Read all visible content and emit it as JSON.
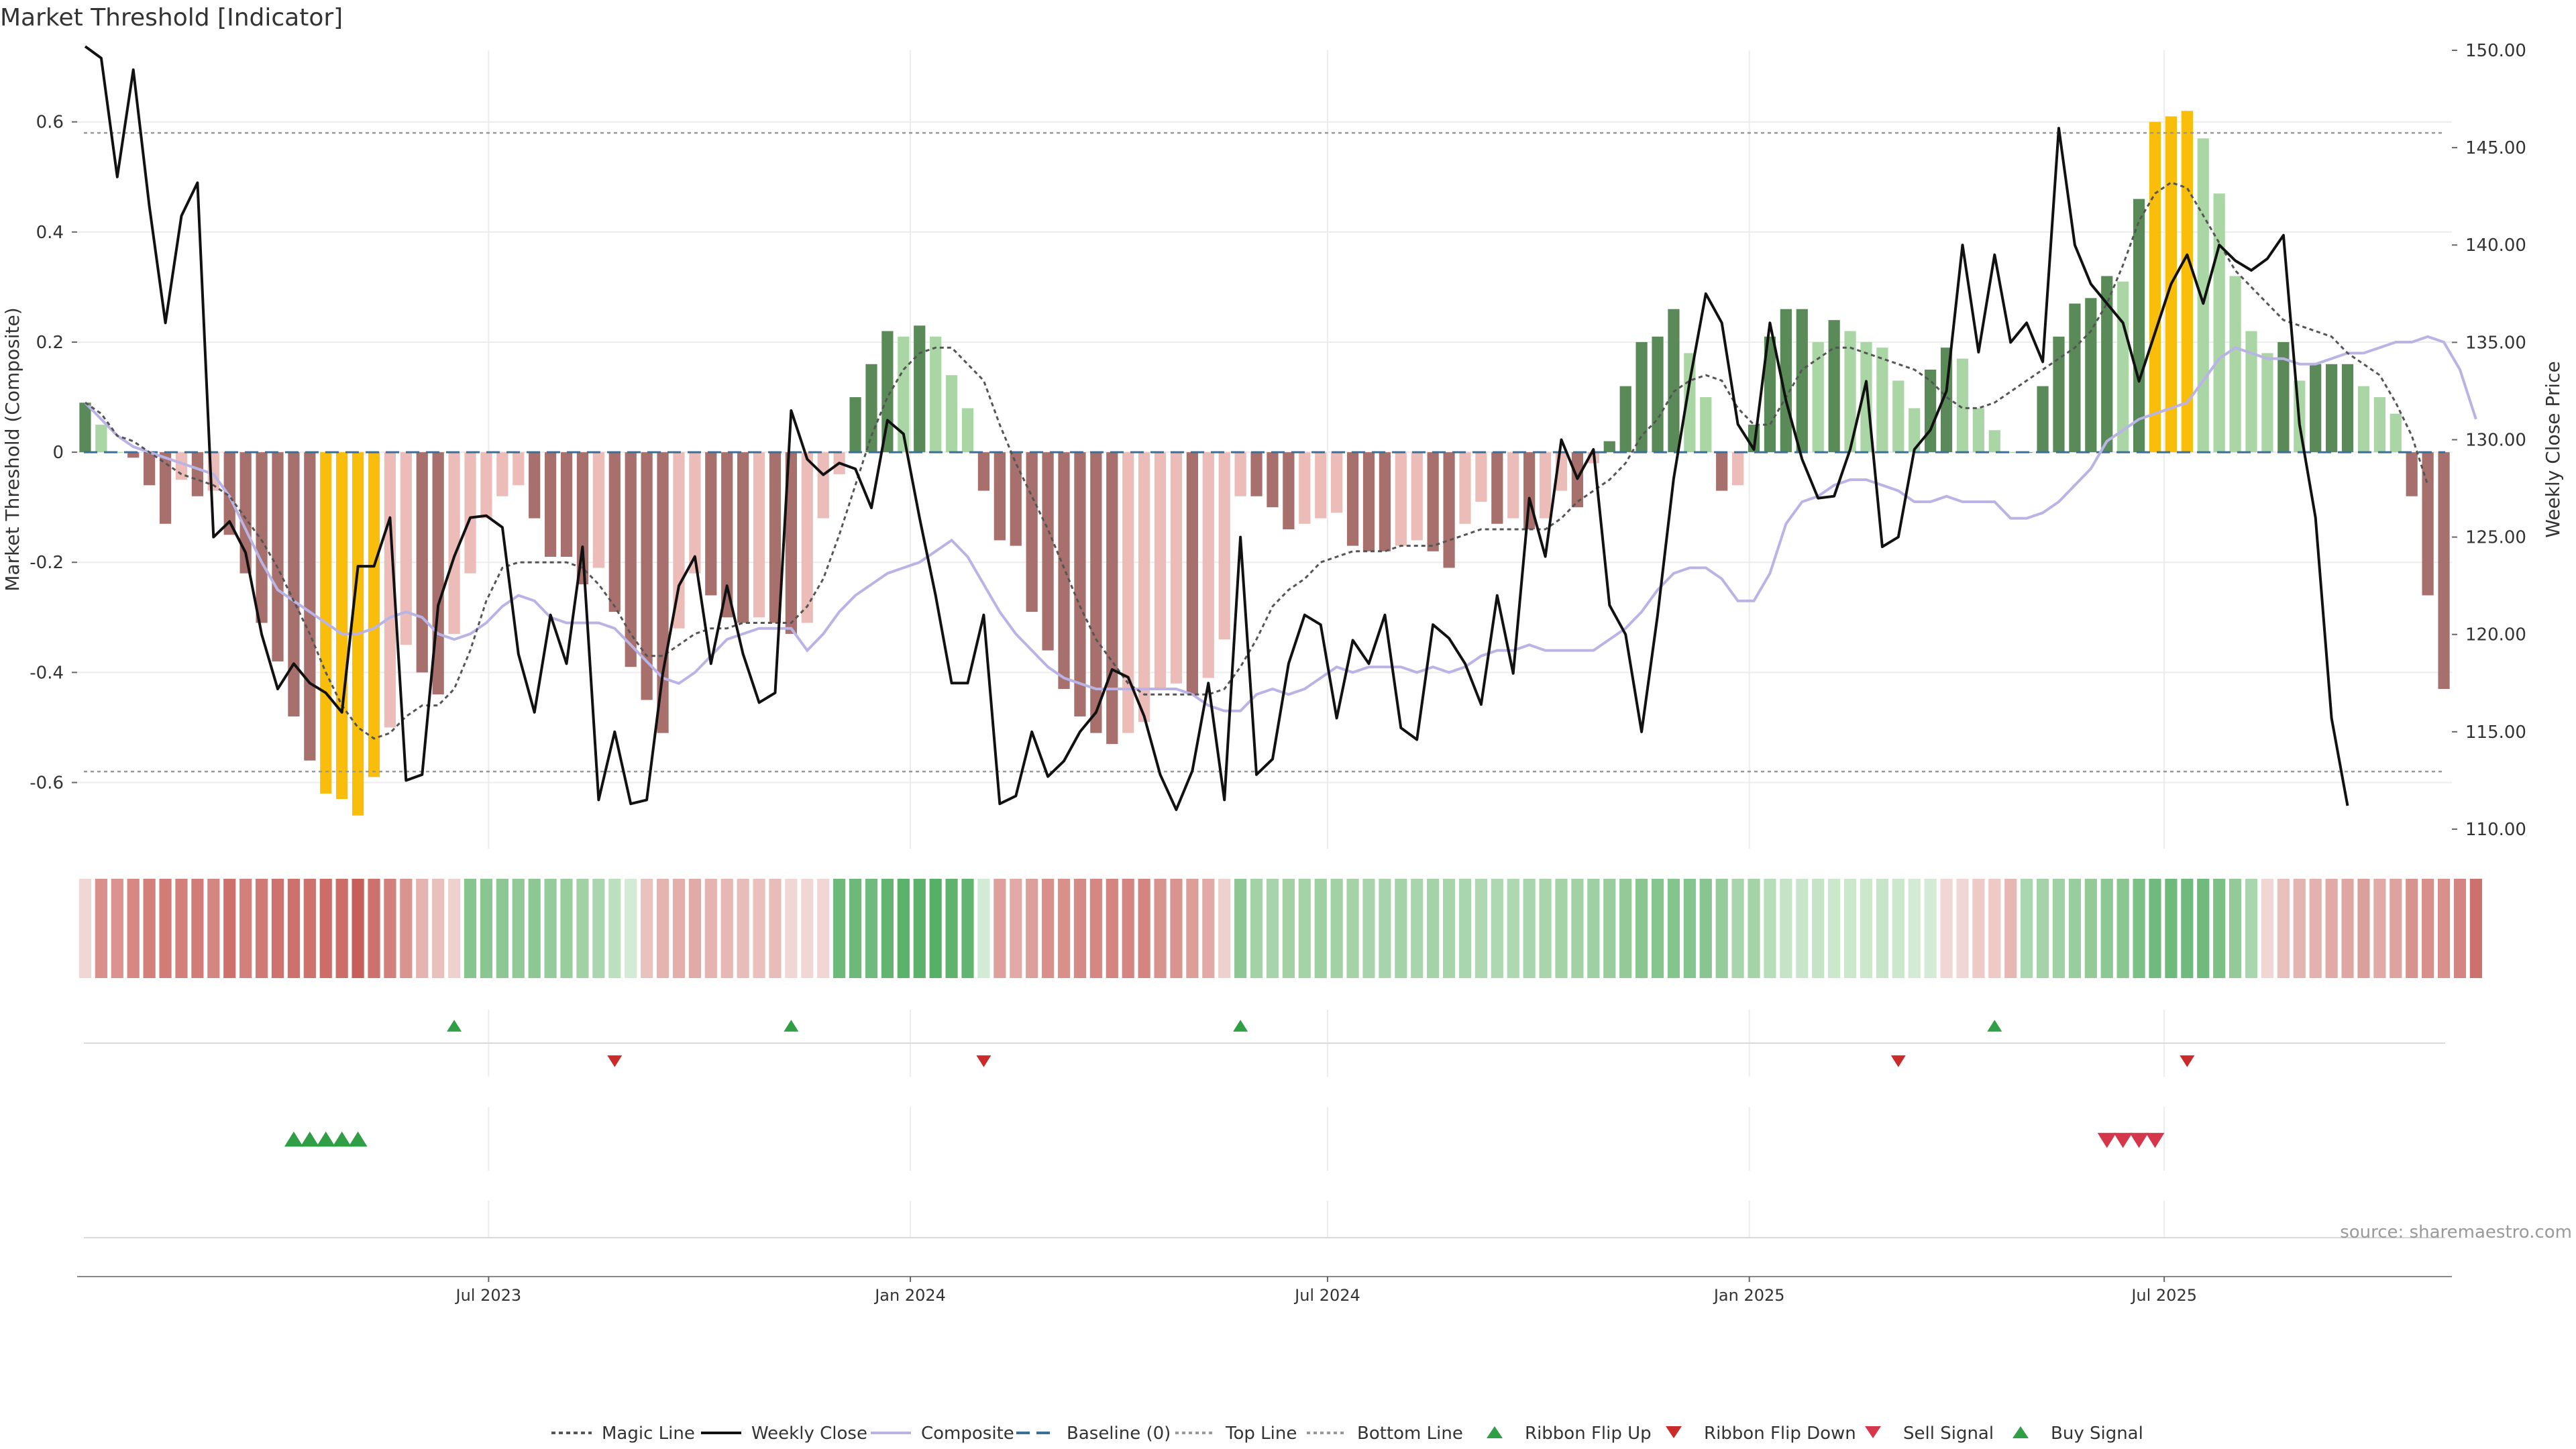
{
  "chart_data": {
    "type": "bar",
    "title": "Market Threshold [Indicator]",
    "ylabel": "Market Threshold (Composite)",
    "ylabel_right": "Weekly Close Price",
    "source": "source: sharemaestro.com",
    "ylim": [
      -0.72,
      0.73
    ],
    "ylim_right": [
      109.0,
      150.0
    ],
    "yticks": [
      -0.6,
      -0.4,
      -0.2,
      0,
      0.2,
      0.4,
      0.6
    ],
    "ytick_labels": [
      "-0.6",
      "-0.4",
      "-0.2",
      "0",
      "0.2",
      "0.4",
      "0.6"
    ],
    "yticks_right": [
      110,
      115,
      120,
      125,
      130,
      135,
      140,
      145,
      150
    ],
    "ytick_labels_right": [
      "110.00",
      "115.00",
      "120.00",
      "125.00",
      "130.00",
      "135.00",
      "140.00",
      "145.00",
      "150.00"
    ],
    "x_start": "2023-01-06",
    "x_step_days": 7,
    "xticks": [
      "2023-07-01",
      "2024-01-01",
      "2024-07-01",
      "2025-01-01",
      "2025-07-01"
    ],
    "xtick_labels": [
      "Jul 2023",
      "Jan 2024",
      "Jul 2024",
      "Jan 2025",
      "Jul 2025"
    ],
    "top_line": 0.58,
    "bottom_line": -0.58,
    "colors": {
      "dark_green": "#5a8a58",
      "light_green": "#aad6a5",
      "dark_red": "#a8706c",
      "light_red": "#ecbdb8",
      "gold": "#f9be0b",
      "weekly_close": "#111111",
      "composite": "#b9b3e6",
      "magic_line": "#555555",
      "baseline": "#3a6f9a",
      "threshold": "#999999",
      "buy": "#2f9e44",
      "sell": "#d63649",
      "flip_up": "#2f9e44",
      "flip_down": "#c92a2a"
    },
    "series": [
      {
        "name": "Composite (bars)",
        "values": [
          0.09,
          0.05,
          0.0,
          -0.01,
          -0.06,
          -0.13,
          -0.05,
          -0.08,
          -0.07,
          -0.15,
          -0.22,
          -0.31,
          -0.38,
          -0.48,
          -0.56,
          -0.62,
          -0.63,
          -0.66,
          -0.59,
          -0.5,
          -0.35,
          -0.4,
          -0.44,
          -0.33,
          -0.22,
          -0.12,
          -0.08,
          -0.06,
          -0.12,
          -0.19,
          -0.19,
          -0.24,
          -0.21,
          -0.29,
          -0.39,
          -0.45,
          -0.51,
          -0.32,
          -0.22,
          -0.26,
          -0.3,
          -0.31,
          -0.3,
          -0.31,
          -0.33,
          -0.31,
          -0.12,
          -0.04,
          0.1,
          0.16,
          0.22,
          0.21,
          0.23,
          0.21,
          0.14,
          0.08,
          -0.07,
          -0.16,
          -0.17,
          -0.29,
          -0.36,
          -0.43,
          -0.48,
          -0.51,
          -0.53,
          -0.51,
          -0.49,
          -0.43,
          -0.42,
          -0.44,
          -0.41,
          -0.34,
          -0.08,
          -0.08,
          -0.1,
          -0.14,
          -0.13,
          -0.12,
          -0.11,
          -0.17,
          -0.18,
          -0.18,
          -0.17,
          -0.16,
          -0.18,
          -0.21,
          -0.13,
          -0.09,
          -0.13,
          -0.12,
          -0.14,
          -0.12,
          -0.07,
          -0.1,
          -0.02,
          0.02,
          0.12,
          0.2,
          0.21,
          0.26,
          0.18,
          0.1,
          -0.07,
          -0.06,
          0.05,
          0.21,
          0.26,
          0.26,
          0.2,
          0.24,
          0.22,
          0.2,
          0.19,
          0.13,
          0.08,
          0.15,
          0.19,
          0.17,
          0.08,
          0.04,
          0.0,
          0.0,
          0.12,
          0.21,
          0.27,
          0.28,
          0.32,
          0.31,
          0.46,
          0.6,
          0.61,
          0.62,
          0.57,
          0.47,
          0.32,
          0.22,
          0.18,
          0.2,
          0.13,
          0.16,
          0.16,
          0.16,
          0.12,
          0.1,
          0.07,
          -0.08,
          -0.26,
          -0.43
        ]
      },
      {
        "name": "Weekly Close",
        "values": [
          150.2,
          149.6,
          143.5,
          149.0,
          142.0,
          136.0,
          141.5,
          143.2,
          125.0,
          125.8,
          124.2,
          120.0,
          117.2,
          118.5,
          117.5,
          117.0,
          116.0,
          123.5,
          123.5,
          126.0,
          112.5,
          112.8,
          121.5,
          124.0,
          126.0,
          126.1,
          125.5,
          119.0,
          116.0,
          121.0,
          118.5,
          124.5,
          111.5,
          115.0,
          111.3,
          111.5,
          118.0,
          122.5,
          124.0,
          118.5,
          122.5,
          119.0,
          116.5,
          117.0,
          131.5,
          129.0,
          128.2,
          128.8,
          128.5,
          126.5,
          131.0,
          130.3,
          126.0,
          122.0,
          117.5,
          117.5,
          121.0,
          111.3,
          111.7,
          115.0,
          112.7,
          113.5,
          115.0,
          116.0,
          118.2,
          117.8,
          115.8,
          112.8,
          111.0,
          113.0,
          117.5,
          111.5,
          125.0,
          112.8,
          113.6,
          118.5,
          121.0,
          120.5,
          115.7,
          119.7,
          118.5,
          121.0,
          115.2,
          114.6,
          120.5,
          119.8,
          118.5,
          116.4,
          122.0,
          118.0,
          127.0,
          124.0,
          130.0,
          128.0,
          129.5,
          121.5,
          120.0,
          115.0,
          121.0,
          128.0,
          133.0,
          137.5,
          136.0,
          130.8,
          129.5,
          136.0,
          132.0,
          129.0,
          127.0,
          127.1,
          129.5,
          133.0,
          124.5,
          125.0,
          129.5,
          130.5,
          132.5,
          140.0,
          134.5,
          139.5,
          135.0,
          136.0,
          134.0,
          146.0,
          140.0,
          138.0,
          137.0,
          136.0,
          133.0,
          135.5,
          138.0,
          139.5,
          137.0,
          140.0,
          139.2,
          138.7,
          139.3,
          140.5,
          130.8,
          126.0,
          115.7,
          111.2
        ]
      },
      {
        "name": "Composite",
        "values": [
          0.09,
          0.06,
          0.03,
          0.01,
          0.0,
          -0.01,
          -0.02,
          -0.03,
          -0.04,
          -0.08,
          -0.14,
          -0.2,
          -0.25,
          -0.27,
          -0.29,
          -0.31,
          -0.33,
          -0.33,
          -0.32,
          -0.3,
          -0.29,
          -0.3,
          -0.33,
          -0.34,
          -0.33,
          -0.31,
          -0.28,
          -0.26,
          -0.27,
          -0.3,
          -0.31,
          -0.31,
          -0.31,
          -0.32,
          -0.35,
          -0.38,
          -0.41,
          -0.42,
          -0.4,
          -0.37,
          -0.34,
          -0.33,
          -0.32,
          -0.32,
          -0.32,
          -0.36,
          -0.33,
          -0.29,
          -0.26,
          -0.24,
          -0.22,
          -0.21,
          -0.2,
          -0.18,
          -0.16,
          -0.19,
          -0.24,
          -0.29,
          -0.33,
          -0.36,
          -0.39,
          -0.41,
          -0.42,
          -0.43,
          -0.43,
          -0.43,
          -0.43,
          -0.43,
          -0.43,
          -0.44,
          -0.46,
          -0.47,
          -0.47,
          -0.44,
          -0.43,
          -0.44,
          -0.43,
          -0.41,
          -0.39,
          -0.4,
          -0.39,
          -0.39,
          -0.39,
          -0.4,
          -0.39,
          -0.4,
          -0.39,
          -0.37,
          -0.36,
          -0.36,
          -0.35,
          -0.36,
          -0.36,
          -0.36,
          -0.36,
          -0.34,
          -0.32,
          -0.29,
          -0.25,
          -0.22,
          -0.21,
          -0.21,
          -0.23,
          -0.27,
          -0.27,
          -0.22,
          -0.13,
          -0.09,
          -0.08,
          -0.06,
          -0.05,
          -0.05,
          -0.06,
          -0.07,
          -0.09,
          -0.09,
          -0.08,
          -0.09,
          -0.09,
          -0.09,
          -0.12,
          -0.12,
          -0.11,
          -0.09,
          -0.06,
          -0.03,
          0.02,
          0.04,
          0.06,
          0.07,
          0.08,
          0.09,
          0.13,
          0.17,
          0.19,
          0.18,
          0.17,
          0.17,
          0.16,
          0.16,
          0.17,
          0.18,
          0.18,
          0.19,
          0.2,
          0.2,
          0.21,
          0.2,
          0.15,
          0.06
        ]
      },
      {
        "name": "Magic Line",
        "values": [
          0.09,
          0.07,
          0.03,
          0.02,
          0.0,
          -0.02,
          -0.04,
          -0.05,
          -0.06,
          -0.08,
          -0.12,
          -0.16,
          -0.21,
          -0.27,
          -0.33,
          -0.4,
          -0.46,
          -0.5,
          -0.52,
          -0.51,
          -0.48,
          -0.46,
          -0.46,
          -0.43,
          -0.36,
          -0.27,
          -0.21,
          -0.2,
          -0.2,
          -0.2,
          -0.2,
          -0.21,
          -0.24,
          -0.28,
          -0.33,
          -0.37,
          -0.37,
          -0.35,
          -0.33,
          -0.32,
          -0.32,
          -0.31,
          -0.31,
          -0.31,
          -0.31,
          -0.28,
          -0.23,
          -0.15,
          -0.06,
          0.03,
          0.1,
          0.15,
          0.18,
          0.19,
          0.19,
          0.16,
          0.13,
          0.05,
          -0.02,
          -0.08,
          -0.14,
          -0.21,
          -0.28,
          -0.34,
          -0.38,
          -0.42,
          -0.44,
          -0.44,
          -0.44,
          -0.44,
          -0.44,
          -0.43,
          -0.39,
          -0.34,
          -0.28,
          -0.25,
          -0.23,
          -0.2,
          -0.19,
          -0.18,
          -0.18,
          -0.18,
          -0.17,
          -0.17,
          -0.17,
          -0.16,
          -0.15,
          -0.14,
          -0.14,
          -0.14,
          -0.14,
          -0.14,
          -0.12,
          -0.09,
          -0.07,
          -0.05,
          -0.02,
          0.03,
          0.06,
          0.11,
          0.13,
          0.14,
          0.13,
          0.08,
          0.05,
          0.05,
          0.1,
          0.15,
          0.17,
          0.19,
          0.19,
          0.18,
          0.17,
          0.16,
          0.15,
          0.13,
          0.1,
          0.08,
          0.08,
          0.09,
          0.11,
          0.13,
          0.15,
          0.17,
          0.19,
          0.22,
          0.27,
          0.34,
          0.42,
          0.47,
          0.49,
          0.48,
          0.43,
          0.38,
          0.33,
          0.3,
          0.27,
          0.24,
          0.23,
          0.22,
          0.21,
          0.18,
          0.16,
          0.14,
          0.09,
          0.03,
          -0.06
        ]
      }
    ],
    "ribbon_colors": [
      "#f0d7d5",
      "#d9908b",
      "#da938e",
      "#d78883",
      "#d37f7a",
      "#d27c77",
      "#d37f7a",
      "#d27c77",
      "#d48681",
      "#cd716c",
      "#d1807b",
      "#d07a75",
      "#cd726c",
      "#cd716c",
      "#cd716c",
      "#cc6d68",
      "#cc6d68",
      "#c85e59",
      "#cd716c",
      "#d37f7a",
      "#da948f",
      "#e5b4b0",
      "#e9c0bc",
      "#eed0cd",
      "#87c58f",
      "#8ac690",
      "#8dc793",
      "#91c997",
      "#8dc793",
      "#96cc9b",
      "#98cd9d",
      "#a1d1a5",
      "#aad6ad",
      "#bae0bd",
      "#d3ead4",
      "#e9c2bf",
      "#e5b4b0",
      "#e4afab",
      "#e2aaa6",
      "#e5b4b0",
      "#e6b7b3",
      "#e8bdb9",
      "#e9c0bc",
      "#e8bdb9",
      "#f0d7d5",
      "#f0d7d5",
      "#f0d7d5",
      "#6db97a",
      "#6db97a",
      "#6fba7c",
      "#62b570",
      "#5db26b",
      "#5db26b",
      "#58b066",
      "#5fb36d",
      "#62b570",
      "#d3ead4",
      "#dda09c",
      "#e2aaa6",
      "#dca09b",
      "#d9908b",
      "#d8908b",
      "#d68a85",
      "#d58883",
      "#d48581",
      "#d48581",
      "#d48581",
      "#d9938e",
      "#da948f",
      "#dc9e99",
      "#e2aaa6",
      "#eed0cd",
      "#8dc793",
      "#a3d2a7",
      "#a7d4aa",
      "#a1d1a5",
      "#a4d3a8",
      "#9fd0a3",
      "#a1d1a5",
      "#a4d3a8",
      "#a7d4aa",
      "#a7d4aa",
      "#a4d3a8",
      "#a9d5ac",
      "#a4d3a8",
      "#a7d4aa",
      "#aad6ad",
      "#aed8b1",
      "#aed8b1",
      "#aed8b1",
      "#a9d5ac",
      "#a9d5ac",
      "#a4d3a8",
      "#a1d1a5",
      "#9fd0a3",
      "#98cd9d",
      "#93ca98",
      "#8ac690",
      "#87c58f",
      "#84c48d",
      "#84c48d",
      "#88c590",
      "#96cc9b",
      "#a9d5ac",
      "#a4d3a8",
      "#b6dfb9",
      "#c5e3c7",
      "#c8e5ca",
      "#c5e3c7",
      "#cbe7cc",
      "#cbe7cc",
      "#cbe7cc",
      "#c8e5ca",
      "#cbe7cc",
      "#d3ead4",
      "#d3ead4",
      "#f0d7d5",
      "#f0d7d5",
      "#eec9c6",
      "#eec9c6",
      "#e6b7b3",
      "#abd7ae",
      "#a5d3a9",
      "#a0d1a4",
      "#98cd9d",
      "#93ca98",
      "#8dc793",
      "#8ac690",
      "#7bc084",
      "#6fba7c",
      "#6dba7a",
      "#6fba7c",
      "#6fba7c",
      "#7bc084",
      "#93ca98",
      "#aad6ad",
      "#f0d7d5",
      "#e8c0bc",
      "#e5b4b0",
      "#e4b2ae",
      "#e2aaa6",
      "#e0a6a2",
      "#dca09b",
      "#e2aaa6",
      "#dea39f",
      "#d9938e",
      "#d9908b",
      "#d8908b",
      "#d48581",
      "#cd716c"
    ],
    "ribbon_flip_up": [
      23,
      44,
      72,
      119
    ],
    "ribbon_flip_down": [
      33,
      56,
      113,
      131
    ],
    "buy_signal": [
      13,
      14,
      15,
      16,
      17
    ],
    "sell_signal": [
      126,
      127,
      128,
      129
    ],
    "legend": [
      "Magic Line",
      "Weekly Close",
      "Composite",
      "Baseline (0)",
      "Top Line",
      "Bottom Line",
      "Ribbon Flip Up",
      "Ribbon Flip Down",
      "Sell Signal",
      "Buy Signal"
    ]
  }
}
